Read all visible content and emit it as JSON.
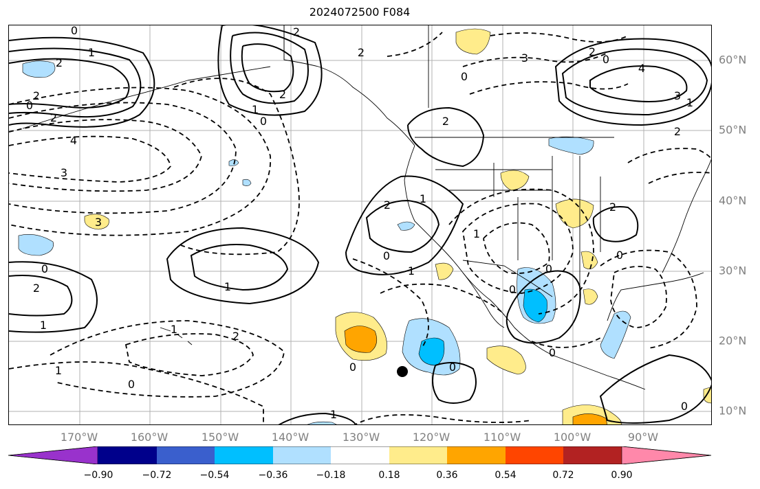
{
  "title": "2024072500 F084",
  "lat_labels": [
    "60°N",
    "50°N",
    "40°N",
    "30°N",
    "20°N",
    "10°N"
  ],
  "lon_labels": [
    "170°W",
    "160°W",
    "150°W",
    "140°W",
    "130°W",
    "120°W",
    "110°W",
    "100°W",
    "90°W"
  ],
  "colorbar": {
    "tick_labels": [
      "−0.90",
      "−0.72",
      "−0.54",
      "−0.36",
      "−0.18",
      "0.18",
      "0.36",
      "0.54",
      "0.72",
      "0.90"
    ],
    "colors": [
      "#9932cc",
      "#00008b",
      "#3a5fcd",
      "#00bfff",
      "#b0e0ff",
      "#ffffff",
      "#ffec8b",
      "#ffa500",
      "#ff4500",
      "#b22222",
      "#ff88aa"
    ]
  },
  "contour_labels": [
    {
      "text": "0"
    },
    {
      "text": "2"
    },
    {
      "text": "1"
    },
    {
      "text": "2"
    },
    {
      "text": "0"
    },
    {
      "text": "2"
    },
    {
      "text": "3"
    },
    {
      "text": "4"
    },
    {
      "text": "3"
    },
    {
      "text": "2"
    },
    {
      "text": "1"
    },
    {
      "text": "0"
    },
    {
      "text": "2"
    },
    {
      "text": "1"
    },
    {
      "text": "0"
    },
    {
      "text": "2"
    },
    {
      "text": "2"
    },
    {
      "text": "1"
    },
    {
      "text": "1"
    },
    {
      "text": "0"
    },
    {
      "text": "1"
    },
    {
      "text": "1"
    },
    {
      "text": "2"
    },
    {
      "text": "0"
    },
    {
      "text": "0"
    },
    {
      "text": "2"
    },
    {
      "text": "1"
    },
    {
      "text": "0"
    },
    {
      "text": "3"
    },
    {
      "text": "2"
    },
    {
      "text": "4"
    },
    {
      "text": "3"
    },
    {
      "text": "2"
    },
    {
      "text": "1"
    },
    {
      "text": "0"
    },
    {
      "text": "2"
    },
    {
      "text": "0"
    },
    {
      "text": "0"
    },
    {
      "text": "0"
    },
    {
      "text": "1"
    },
    {
      "text": "2"
    },
    {
      "text": "0"
    },
    {
      "text": "0"
    },
    {
      "text": "1"
    },
    {
      "text": "0"
    }
  ],
  "marker": {
    "type": "point",
    "color": "#000000"
  }
}
